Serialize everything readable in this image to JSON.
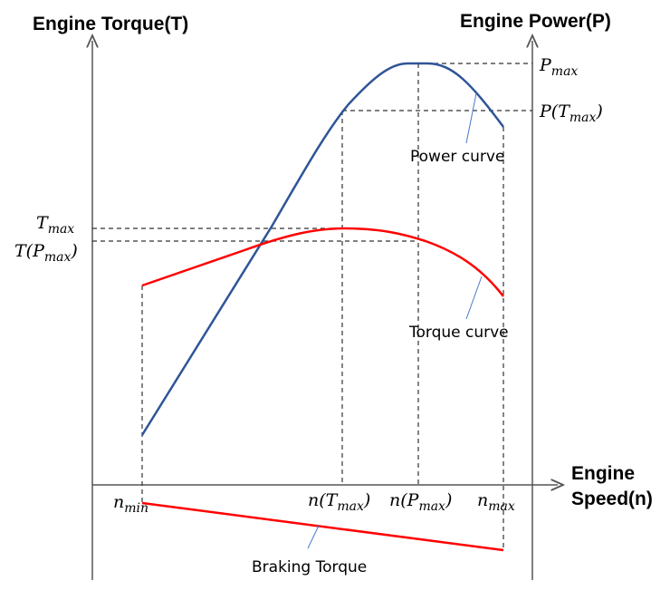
{
  "titles": {
    "left_axis": "Engine Torque(T)",
    "right_axis": "Engine Power(P)",
    "x_axis_line1": "Engine",
    "x_axis_line2": "Speed(n)"
  },
  "math_labels": {
    "p_max": {
      "main": "P",
      "sub": "max",
      "tail": ""
    },
    "p_tmax": {
      "main": "P(T",
      "sub": "max",
      "tail": ")"
    },
    "t_max": {
      "main": "T",
      "sub": "max",
      "tail": ""
    },
    "t_pmax": {
      "main": "T(P",
      "sub": "max",
      "tail": ")"
    },
    "n_min": {
      "main": "n",
      "sub": "min",
      "tail": ""
    },
    "n_tmax": {
      "main": "n(T",
      "sub": "max",
      "tail": ")"
    },
    "n_pmax": {
      "main": "n(P",
      "sub": "max",
      "tail": ")"
    },
    "n_max": {
      "main": "n",
      "sub": "max",
      "tail": ""
    }
  },
  "curve_labels": {
    "power": "Power curve",
    "torque": "Torque curve",
    "braking": "Braking Torque"
  },
  "colors": {
    "power_curve": "#2f5597",
    "torque_curve": "#ff0000",
    "braking_torque": "#ff0000",
    "leader_line": "#4a78c8"
  }
}
